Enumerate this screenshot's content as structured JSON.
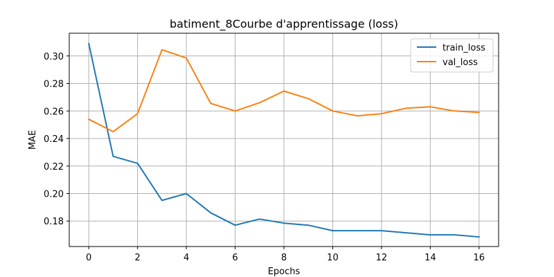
{
  "chart_data": {
    "type": "line",
    "title": "batiment_8Courbe d'apprentissage (loss)",
    "xlabel": "Epochs",
    "ylabel": "MAE",
    "xlim": [
      -0.8,
      16.8
    ],
    "ylim": [
      0.1615,
      0.3165
    ],
    "xticks": [
      0,
      2,
      4,
      6,
      8,
      10,
      12,
      14,
      16
    ],
    "yticks": [
      0.18,
      0.2,
      0.22,
      0.24,
      0.26,
      0.28,
      0.3
    ],
    "ytick_labels": [
      "0.18",
      "0.20",
      "0.22",
      "0.24",
      "0.26",
      "0.28",
      "0.30"
    ],
    "grid": true,
    "legend_position": "top-right",
    "x": [
      0,
      1,
      2,
      3,
      4,
      5,
      6,
      7,
      8,
      9,
      10,
      11,
      12,
      13,
      14,
      15,
      16
    ],
    "series": [
      {
        "name": "train_loss",
        "color": "#1f77b4",
        "values": [
          0.309,
          0.227,
          0.222,
          0.195,
          0.2,
          0.186,
          0.177,
          0.1815,
          0.1785,
          0.177,
          0.173,
          0.173,
          0.173,
          0.1715,
          0.17,
          0.17,
          0.1685
        ]
      },
      {
        "name": "val_loss",
        "color": "#ff7f0e",
        "values": [
          0.254,
          0.245,
          0.258,
          0.3045,
          0.2985,
          0.2655,
          0.26,
          0.266,
          0.2745,
          0.269,
          0.26,
          0.2565,
          0.258,
          0.262,
          0.263,
          0.26,
          0.259
        ]
      }
    ]
  }
}
